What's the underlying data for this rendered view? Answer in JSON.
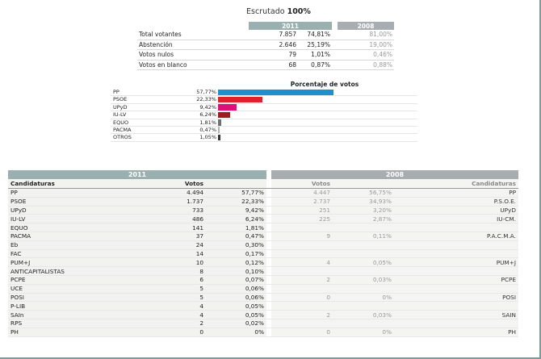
{
  "escrutado": {
    "label": "Escrutado",
    "value": "100%"
  },
  "summary": {
    "year_2011": "2011",
    "year_2008": "2008",
    "rows": [
      {
        "label": "Total votantes",
        "votes": "7.857",
        "pct": "74,81%",
        "pct_2008": "81,00%"
      },
      {
        "label": "Abstención",
        "votes": "2.646",
        "pct": "25,19%",
        "pct_2008": "19,00%"
      },
      {
        "label": "Votos nulos",
        "votes": "79",
        "pct": "1,01%",
        "pct_2008": "0,46%"
      },
      {
        "label": "Votos en blanco",
        "votes": "68",
        "pct": "0,87%",
        "pct_2008": "0,88%"
      }
    ]
  },
  "chart_data": {
    "type": "bar",
    "title": "Porcentaje de votos",
    "categories": [
      "PP",
      "PSOE",
      "UPyD",
      "IU-LV",
      "EQUO",
      "PACMA",
      "OTROS"
    ],
    "labels": [
      "57,77%",
      "22,33%",
      "9,42%",
      "6,24%",
      "1,81%",
      "0,47%",
      "1,05%"
    ],
    "values": [
      57.77,
      22.33,
      9.42,
      6.24,
      1.81,
      0.47,
      1.05
    ],
    "colors": [
      "#1e90d0",
      "#e0202a",
      "#e0107a",
      "#a01a22",
      "#707070",
      "#b0b0b0",
      "#333333"
    ],
    "xlim": [
      0,
      100
    ]
  },
  "results": {
    "year_2011": "2011",
    "year_2008": "2008",
    "col_candidaturas": "Candidaturas",
    "col_votos": "Votos",
    "rows": [
      {
        "name": "PP",
        "votes": "4.494",
        "pct": "57,77%",
        "votes_2008": "4.447",
        "pct_2008": "56,75%",
        "name_2008": "PP"
      },
      {
        "name": "PSOE",
        "votes": "1.737",
        "pct": "22,33%",
        "votes_2008": "2.737",
        "pct_2008": "34,93%",
        "name_2008": "P.S.O.E."
      },
      {
        "name": "UPyD",
        "votes": "733",
        "pct": "9,42%",
        "votes_2008": "251",
        "pct_2008": "3,20%",
        "name_2008": "UPyD"
      },
      {
        "name": "IU-LV",
        "votes": "486",
        "pct": "6,24%",
        "votes_2008": "225",
        "pct_2008": "2,87%",
        "name_2008": "IU-CM."
      },
      {
        "name": "EQUO",
        "votes": "141",
        "pct": "1,81%",
        "votes_2008": "",
        "pct_2008": "",
        "name_2008": ""
      },
      {
        "name": "PACMA",
        "votes": "37",
        "pct": "0,47%",
        "votes_2008": "9",
        "pct_2008": "0,11%",
        "name_2008": "P.A.C.M.A."
      },
      {
        "name": "Eb",
        "votes": "24",
        "pct": "0,30%",
        "votes_2008": "",
        "pct_2008": "",
        "name_2008": ""
      },
      {
        "name": "FAC",
        "votes": "14",
        "pct": "0,17%",
        "votes_2008": "",
        "pct_2008": "",
        "name_2008": ""
      },
      {
        "name": "PUM+J",
        "votes": "10",
        "pct": "0,12%",
        "votes_2008": "4",
        "pct_2008": "0,05%",
        "name_2008": "PUM+J"
      },
      {
        "name": "ANTICAPITALISTAS",
        "votes": "8",
        "pct": "0,10%",
        "votes_2008": "",
        "pct_2008": "",
        "name_2008": ""
      },
      {
        "name": "PCPE",
        "votes": "6",
        "pct": "0,07%",
        "votes_2008": "2",
        "pct_2008": "0,03%",
        "name_2008": "PCPE"
      },
      {
        "name": "UCE",
        "votes": "5",
        "pct": "0,06%",
        "votes_2008": "",
        "pct_2008": "",
        "name_2008": ""
      },
      {
        "name": "POSI",
        "votes": "5",
        "pct": "0,06%",
        "votes_2008": "0",
        "pct_2008": "0%",
        "name_2008": "POSI"
      },
      {
        "name": "P-LIB",
        "votes": "4",
        "pct": "0,05%",
        "votes_2008": "",
        "pct_2008": "",
        "name_2008": ""
      },
      {
        "name": "SAIn",
        "votes": "4",
        "pct": "0,05%",
        "votes_2008": "2",
        "pct_2008": "0,03%",
        "name_2008": "SAIN"
      },
      {
        "name": "RPS",
        "votes": "2",
        "pct": "0,02%",
        "votes_2008": "",
        "pct_2008": "",
        "name_2008": ""
      },
      {
        "name": "PH",
        "votes": "0",
        "pct": "0%",
        "votes_2008": "0",
        "pct_2008": "0%",
        "name_2008": "PH"
      }
    ]
  }
}
